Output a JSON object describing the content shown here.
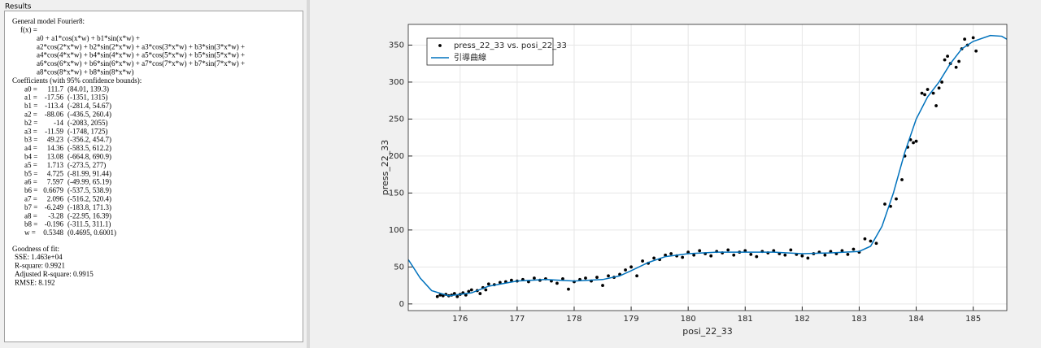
{
  "results": {
    "title": "Results",
    "model_lines": [
      "General model Fourier8:",
      "f(x) =",
      "a0 + a1*cos(x*w) + b1*sin(x*w) +",
      "a2*cos(2*x*w) + b2*sin(2*x*w) + a3*cos(3*x*w) + b3*sin(3*x*w) +",
      "a4*cos(4*x*w) + b4*sin(4*x*w) + a5*cos(5*x*w) + b5*sin(5*x*w) +",
      "a6*cos(6*x*w) + b6*sin(6*x*w) + a7*cos(7*x*w) + b7*sin(7*x*w) +",
      "a8*cos(8*x*w) + b8*sin(8*x*w)"
    ],
    "coefficients_title": "Coefficients (with 95% confidence bounds):",
    "coefficients": [
      [
        "a0 =",
        "111.7",
        "(84.01, 139.3)"
      ],
      [
        "a1 =",
        "-17.56",
        "(-1351, 1315)"
      ],
      [
        "b1 =",
        "-113.4",
        "(-281.4, 54.67)"
      ],
      [
        "a2 =",
        "-88.06",
        "(-436.5, 260.4)"
      ],
      [
        "b2 =",
        "-14",
        "(-2083, 2055)"
      ],
      [
        "a3 =",
        "-11.59",
        "(-1748, 1725)"
      ],
      [
        "b3 =",
        "49.23",
        "(-356.2, 454.7)"
      ],
      [
        "a4 =",
        "14.36",
        "(-583.5, 612.2)"
      ],
      [
        "b4 =",
        "13.08",
        "(-664.8, 690.9)"
      ],
      [
        "a5 =",
        "1.713",
        "(-273.5, 277)"
      ],
      [
        "b5 =",
        "4.725",
        "(-81.99, 91.44)"
      ],
      [
        "a6 =",
        "7.597",
        "(-49.99, 65.19)"
      ],
      [
        "b6 =",
        "0.6679",
        "(-537.5, 538.9)"
      ],
      [
        "a7 =",
        "2.096",
        "(-516.2, 520.4)"
      ],
      [
        "b7 =",
        "-6.249",
        "(-183.8, 171.3)"
      ],
      [
        "a8 =",
        "-3.28",
        "(-22.95, 16.39)"
      ],
      [
        "b8 =",
        "-0.196",
        "(-311.5, 311.1)"
      ],
      [
        "w =",
        "0.5348",
        "(0.4695, 0.6001)"
      ]
    ],
    "goodness_title": "Goodness of fit:",
    "goodness": [
      "SSE: 1.463e+04",
      "R-square: 0.9921",
      "Adjusted R-square: 0.9915",
      "RMSE: 8.192"
    ]
  },
  "chart_data": {
    "type": "scatter",
    "x_label": "posi_22_33",
    "y_label": "press_22_33",
    "xlim": [
      175.09,
      185.59
    ],
    "ylim": [
      -9,
      378
    ],
    "xticks": [
      176,
      177,
      178,
      179,
      180,
      181,
      182,
      183,
      184,
      185
    ],
    "yticks": [
      0,
      50,
      100,
      150,
      200,
      250,
      300,
      350
    ],
    "grid": true,
    "legend": "top-left",
    "series": [
      {
        "name": "press_22_33 vs. posi_22_33",
        "type": "scatter",
        "color": "#000000",
        "x": [
          175.6,
          175.65,
          175.7,
          175.75,
          175.8,
          175.85,
          175.9,
          175.95,
          176.0,
          176.05,
          176.1,
          176.15,
          176.2,
          176.3,
          176.35,
          176.4,
          176.45,
          176.5,
          176.6,
          176.7,
          176.8,
          176.9,
          177.0,
          177.1,
          177.2,
          177.3,
          177.4,
          177.5,
          177.6,
          177.7,
          177.8,
          177.9,
          178.0,
          178.1,
          178.2,
          178.3,
          178.4,
          178.5,
          178.6,
          178.7,
          178.8,
          178.9,
          179.0,
          179.1,
          179.2,
          179.3,
          179.4,
          179.5,
          179.6,
          179.7,
          179.8,
          179.9,
          180.0,
          180.1,
          180.2,
          180.3,
          180.4,
          180.5,
          180.6,
          180.7,
          180.8,
          180.9,
          181.0,
          181.1,
          181.2,
          181.3,
          181.4,
          181.5,
          181.6,
          181.7,
          181.8,
          181.9,
          182.0,
          182.1,
          182.2,
          182.3,
          182.4,
          182.5,
          182.6,
          182.7,
          182.8,
          182.9,
          183.0,
          183.1,
          183.2,
          183.3,
          183.45,
          183.55,
          183.65,
          183.75,
          183.8,
          183.85,
          183.9,
          183.95,
          184.0,
          184.1,
          184.15,
          184.2,
          184.3,
          184.35,
          184.4,
          184.45,
          184.5,
          184.55,
          184.6,
          184.7,
          184.75,
          184.8,
          184.85,
          184.9,
          185.0,
          185.05
        ],
        "values": [
          10,
          12,
          11,
          13,
          11,
          12,
          14,
          10,
          13,
          15,
          12,
          17,
          19,
          18,
          14,
          22,
          19,
          27,
          26,
          29,
          30,
          32,
          31,
          33,
          30,
          35,
          32,
          34,
          31,
          28,
          34,
          20,
          30,
          33,
          35,
          31,
          36,
          25,
          38,
          36,
          40,
          46,
          50,
          38,
          58,
          55,
          62,
          60,
          66,
          68,
          65,
          63,
          70,
          66,
          72,
          68,
          65,
          71,
          69,
          73,
          66,
          70,
          72,
          67,
          64,
          71,
          69,
          72,
          68,
          66,
          73,
          67,
          65,
          62,
          68,
          70,
          66,
          71,
          68,
          72,
          67,
          74,
          70,
          88,
          85,
          82,
          135,
          132,
          142,
          168,
          200,
          212,
          222,
          218,
          220,
          285,
          283,
          290,
          285,
          268,
          292,
          300,
          330,
          335,
          325,
          320,
          328,
          345,
          358,
          350,
          360,
          342
        ]
      },
      {
        "name": "引導曲線",
        "type": "line",
        "color": "#0072bd",
        "x": [
          175.09,
          175.3,
          175.5,
          175.8,
          176.2,
          176.5,
          177.0,
          177.5,
          178.0,
          178.5,
          178.8,
          179.0,
          179.3,
          179.6,
          180.0,
          180.5,
          181.0,
          181.5,
          182.0,
          182.5,
          183.0,
          183.2,
          183.4,
          183.6,
          183.8,
          184.0,
          184.2,
          184.4,
          184.6,
          184.8,
          185.0,
          185.3,
          185.5,
          185.59
        ],
        "values": [
          60,
          35,
          18,
          11,
          15,
          24,
          31,
          33,
          31,
          33,
          38,
          45,
          56,
          64,
          68,
          70,
          70,
          70,
          68,
          69,
          71,
          78,
          105,
          150,
          205,
          250,
          280,
          300,
          325,
          345,
          355,
          363,
          362,
          358
        ]
      }
    ]
  }
}
